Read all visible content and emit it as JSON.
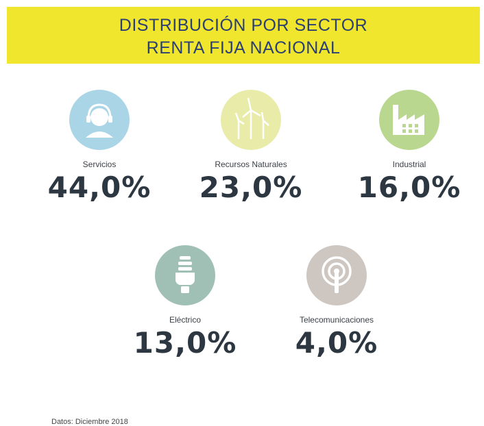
{
  "header": {
    "title_line1": "DISTRIBUCIÓN POR SECTOR",
    "title_line2": "RENTA FIJA NACIONAL"
  },
  "items": [
    {
      "label": "Servicios",
      "value": "44,0%"
    },
    {
      "label": "Recursos Naturales",
      "value": "23,0%"
    },
    {
      "label": "Industrial",
      "value": "16,0%"
    },
    {
      "label": "Eléctrico",
      "value": "13,0%"
    },
    {
      "label": "Telecomunicaciones",
      "value": "4,0%"
    }
  ],
  "footer": "Datos: Diciembre 2018"
}
